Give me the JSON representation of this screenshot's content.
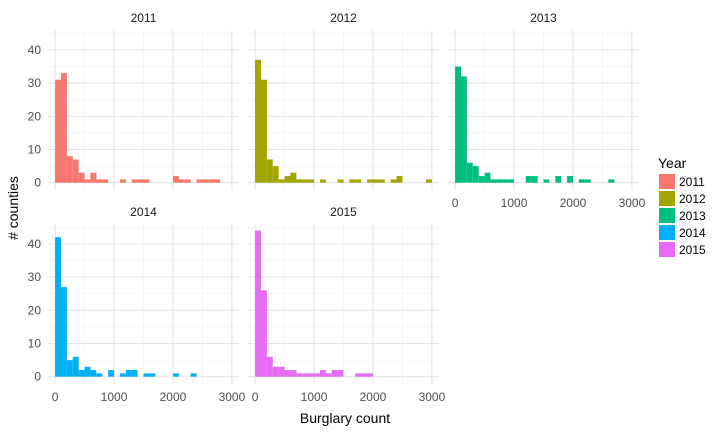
{
  "chart_data": {
    "type": "bar",
    "xlabel": "Burglary count",
    "ylabel": "# counties",
    "xlim": [
      -120,
      3120
    ],
    "ylim": [
      -2.2,
      46
    ],
    "x_ticks": [
      0,
      1000,
      2000,
      3000
    ],
    "y_ticks": [
      0,
      10,
      20,
      30,
      40
    ],
    "bin_width": 100,
    "grid": true,
    "legend": {
      "title": "Year",
      "placement": "right"
    },
    "panels": [
      {
        "year": "2011",
        "color": "#F8766D",
        "bins": [
          {
            "x": 0,
            "count": 31
          },
          {
            "x": 100,
            "count": 33
          },
          {
            "x": 200,
            "count": 8
          },
          {
            "x": 300,
            "count": 7
          },
          {
            "x": 400,
            "count": 3
          },
          {
            "x": 600,
            "count": 3
          },
          {
            "x": 500,
            "count": 1
          },
          {
            "x": 700,
            "count": 1
          },
          {
            "x": 800,
            "count": 1
          },
          {
            "x": 1100,
            "count": 1
          },
          {
            "x": 1300,
            "count": 1
          },
          {
            "x": 1400,
            "count": 1
          },
          {
            "x": 1500,
            "count": 1
          },
          {
            "x": 2000,
            "count": 2
          },
          {
            "x": 2100,
            "count": 1
          },
          {
            "x": 2200,
            "count": 1
          },
          {
            "x": 2400,
            "count": 1
          },
          {
            "x": 2500,
            "count": 1
          },
          {
            "x": 2600,
            "count": 1
          },
          {
            "x": 2700,
            "count": 1
          }
        ]
      },
      {
        "year": "2012",
        "color": "#A3A500",
        "bins": [
          {
            "x": 0,
            "count": 37
          },
          {
            "x": 100,
            "count": 31
          },
          {
            "x": 200,
            "count": 7
          },
          {
            "x": 300,
            "count": 5
          },
          {
            "x": 400,
            "count": 1
          },
          {
            "x": 500,
            "count": 2
          },
          {
            "x": 600,
            "count": 3
          },
          {
            "x": 700,
            "count": 1
          },
          {
            "x": 800,
            "count": 1
          },
          {
            "x": 900,
            "count": 1
          },
          {
            "x": 1100,
            "count": 1
          },
          {
            "x": 1400,
            "count": 1
          },
          {
            "x": 1600,
            "count": 1
          },
          {
            "x": 1700,
            "count": 1
          },
          {
            "x": 1900,
            "count": 1
          },
          {
            "x": 2000,
            "count": 1
          },
          {
            "x": 2100,
            "count": 1
          },
          {
            "x": 2300,
            "count": 1
          },
          {
            "x": 2400,
            "count": 2
          },
          {
            "x": 2900,
            "count": 1
          }
        ]
      },
      {
        "year": "2013",
        "color": "#00BF7D",
        "bins": [
          {
            "x": 0,
            "count": 35
          },
          {
            "x": 100,
            "count": 32
          },
          {
            "x": 200,
            "count": 6
          },
          {
            "x": 300,
            "count": 5
          },
          {
            "x": 400,
            "count": 2
          },
          {
            "x": 500,
            "count": 3
          },
          {
            "x": 600,
            "count": 1
          },
          {
            "x": 700,
            "count": 1
          },
          {
            "x": 800,
            "count": 1
          },
          {
            "x": 900,
            "count": 1
          },
          {
            "x": 1200,
            "count": 2
          },
          {
            "x": 1300,
            "count": 2
          },
          {
            "x": 1500,
            "count": 1
          },
          {
            "x": 1700,
            "count": 2
          },
          {
            "x": 1900,
            "count": 2
          },
          {
            "x": 2100,
            "count": 1
          },
          {
            "x": 2200,
            "count": 1
          },
          {
            "x": 2600,
            "count": 1
          }
        ]
      },
      {
        "year": "2014",
        "color": "#00B0F6",
        "bins": [
          {
            "x": 0,
            "count": 42
          },
          {
            "x": 100,
            "count": 27
          },
          {
            "x": 200,
            "count": 5
          },
          {
            "x": 300,
            "count": 6
          },
          {
            "x": 400,
            "count": 2
          },
          {
            "x": 500,
            "count": 3
          },
          {
            "x": 600,
            "count": 2
          },
          {
            "x": 700,
            "count": 1
          },
          {
            "x": 900,
            "count": 2
          },
          {
            "x": 1100,
            "count": 1
          },
          {
            "x": 1200,
            "count": 2
          },
          {
            "x": 1300,
            "count": 2
          },
          {
            "x": 1500,
            "count": 1
          },
          {
            "x": 1600,
            "count": 1
          },
          {
            "x": 2000,
            "count": 1
          },
          {
            "x": 2300,
            "count": 1
          }
        ]
      },
      {
        "year": "2015",
        "color": "#E76BF3",
        "bins": [
          {
            "x": 0,
            "count": 44
          },
          {
            "x": 100,
            "count": 26
          },
          {
            "x": 200,
            "count": 6
          },
          {
            "x": 300,
            "count": 3
          },
          {
            "x": 400,
            "count": 3
          },
          {
            "x": 500,
            "count": 2
          },
          {
            "x": 600,
            "count": 2
          },
          {
            "x": 700,
            "count": 1
          },
          {
            "x": 800,
            "count": 1
          },
          {
            "x": 900,
            "count": 1
          },
          {
            "x": 1000,
            "count": 1
          },
          {
            "x": 1100,
            "count": 2
          },
          {
            "x": 1200,
            "count": 1
          },
          {
            "x": 1300,
            "count": 2
          },
          {
            "x": 1400,
            "count": 2
          },
          {
            "x": 1700,
            "count": 1
          },
          {
            "x": 1800,
            "count": 1
          },
          {
            "x": 1900,
            "count": 1
          }
        ]
      }
    ]
  }
}
